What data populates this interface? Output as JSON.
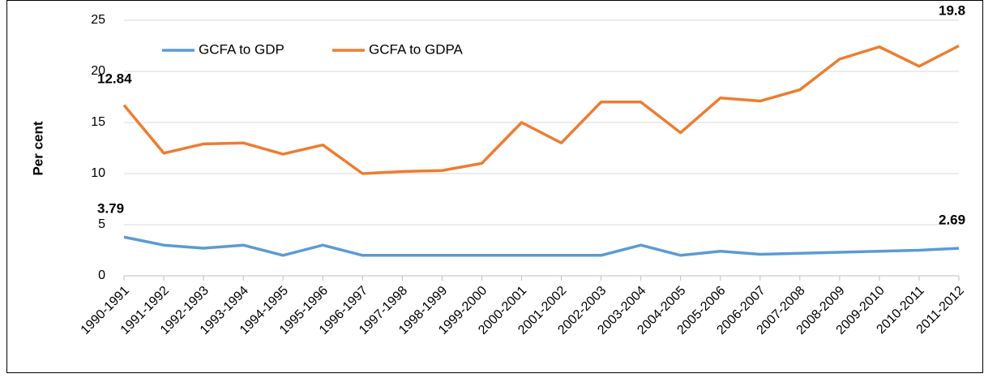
{
  "chart_data": {
    "type": "line",
    "y_label": "Per cent",
    "categories": [
      "1990-1991",
      "1991-1992",
      "1992-1993",
      "1993-1994",
      "1994-1995",
      "1995-1996",
      "1996-1997",
      "1997-1998",
      "1998-1999",
      "1999-2000",
      "2000-2001",
      "2001-2002",
      "2002-2003",
      "2003-2004",
      "2004-2005",
      "2005-2006",
      "2006-2007",
      "2007-2008",
      "2008-2009",
      "2009-2010",
      "2010-2011",
      "2011-2012"
    ],
    "series": [
      {
        "name": "GCFA to GDP",
        "color": "#5b9bd5",
        "values": [
          3.79,
          3.0,
          2.7,
          3.0,
          2.0,
          3.0,
          2.0,
          2.0,
          2.0,
          2.0,
          2.0,
          2.0,
          2.0,
          3.0,
          2.0,
          2.4,
          2.1,
          2.2,
          2.3,
          2.4,
          2.5,
          2.69
        ]
      },
      {
        "name": "GCFA to GDPA",
        "color": "#ed7d31",
        "values": [
          16.7,
          12.0,
          12.9,
          13.0,
          11.9,
          12.8,
          10.0,
          10.2,
          10.3,
          11.0,
          15.0,
          13.0,
          17.0,
          17.0,
          14.0,
          17.4,
          17.1,
          18.2,
          21.2,
          22.4,
          20.5,
          22.5
        ]
      }
    ],
    "annotations": [
      "12.84",
      "19.8",
      "3.79",
      "2.69"
    ],
    "ylim": [
      0,
      25
    ],
    "yticks": [
      0,
      5,
      10,
      15,
      20,
      25
    ],
    "grid": true,
    "legend": "top-left"
  }
}
